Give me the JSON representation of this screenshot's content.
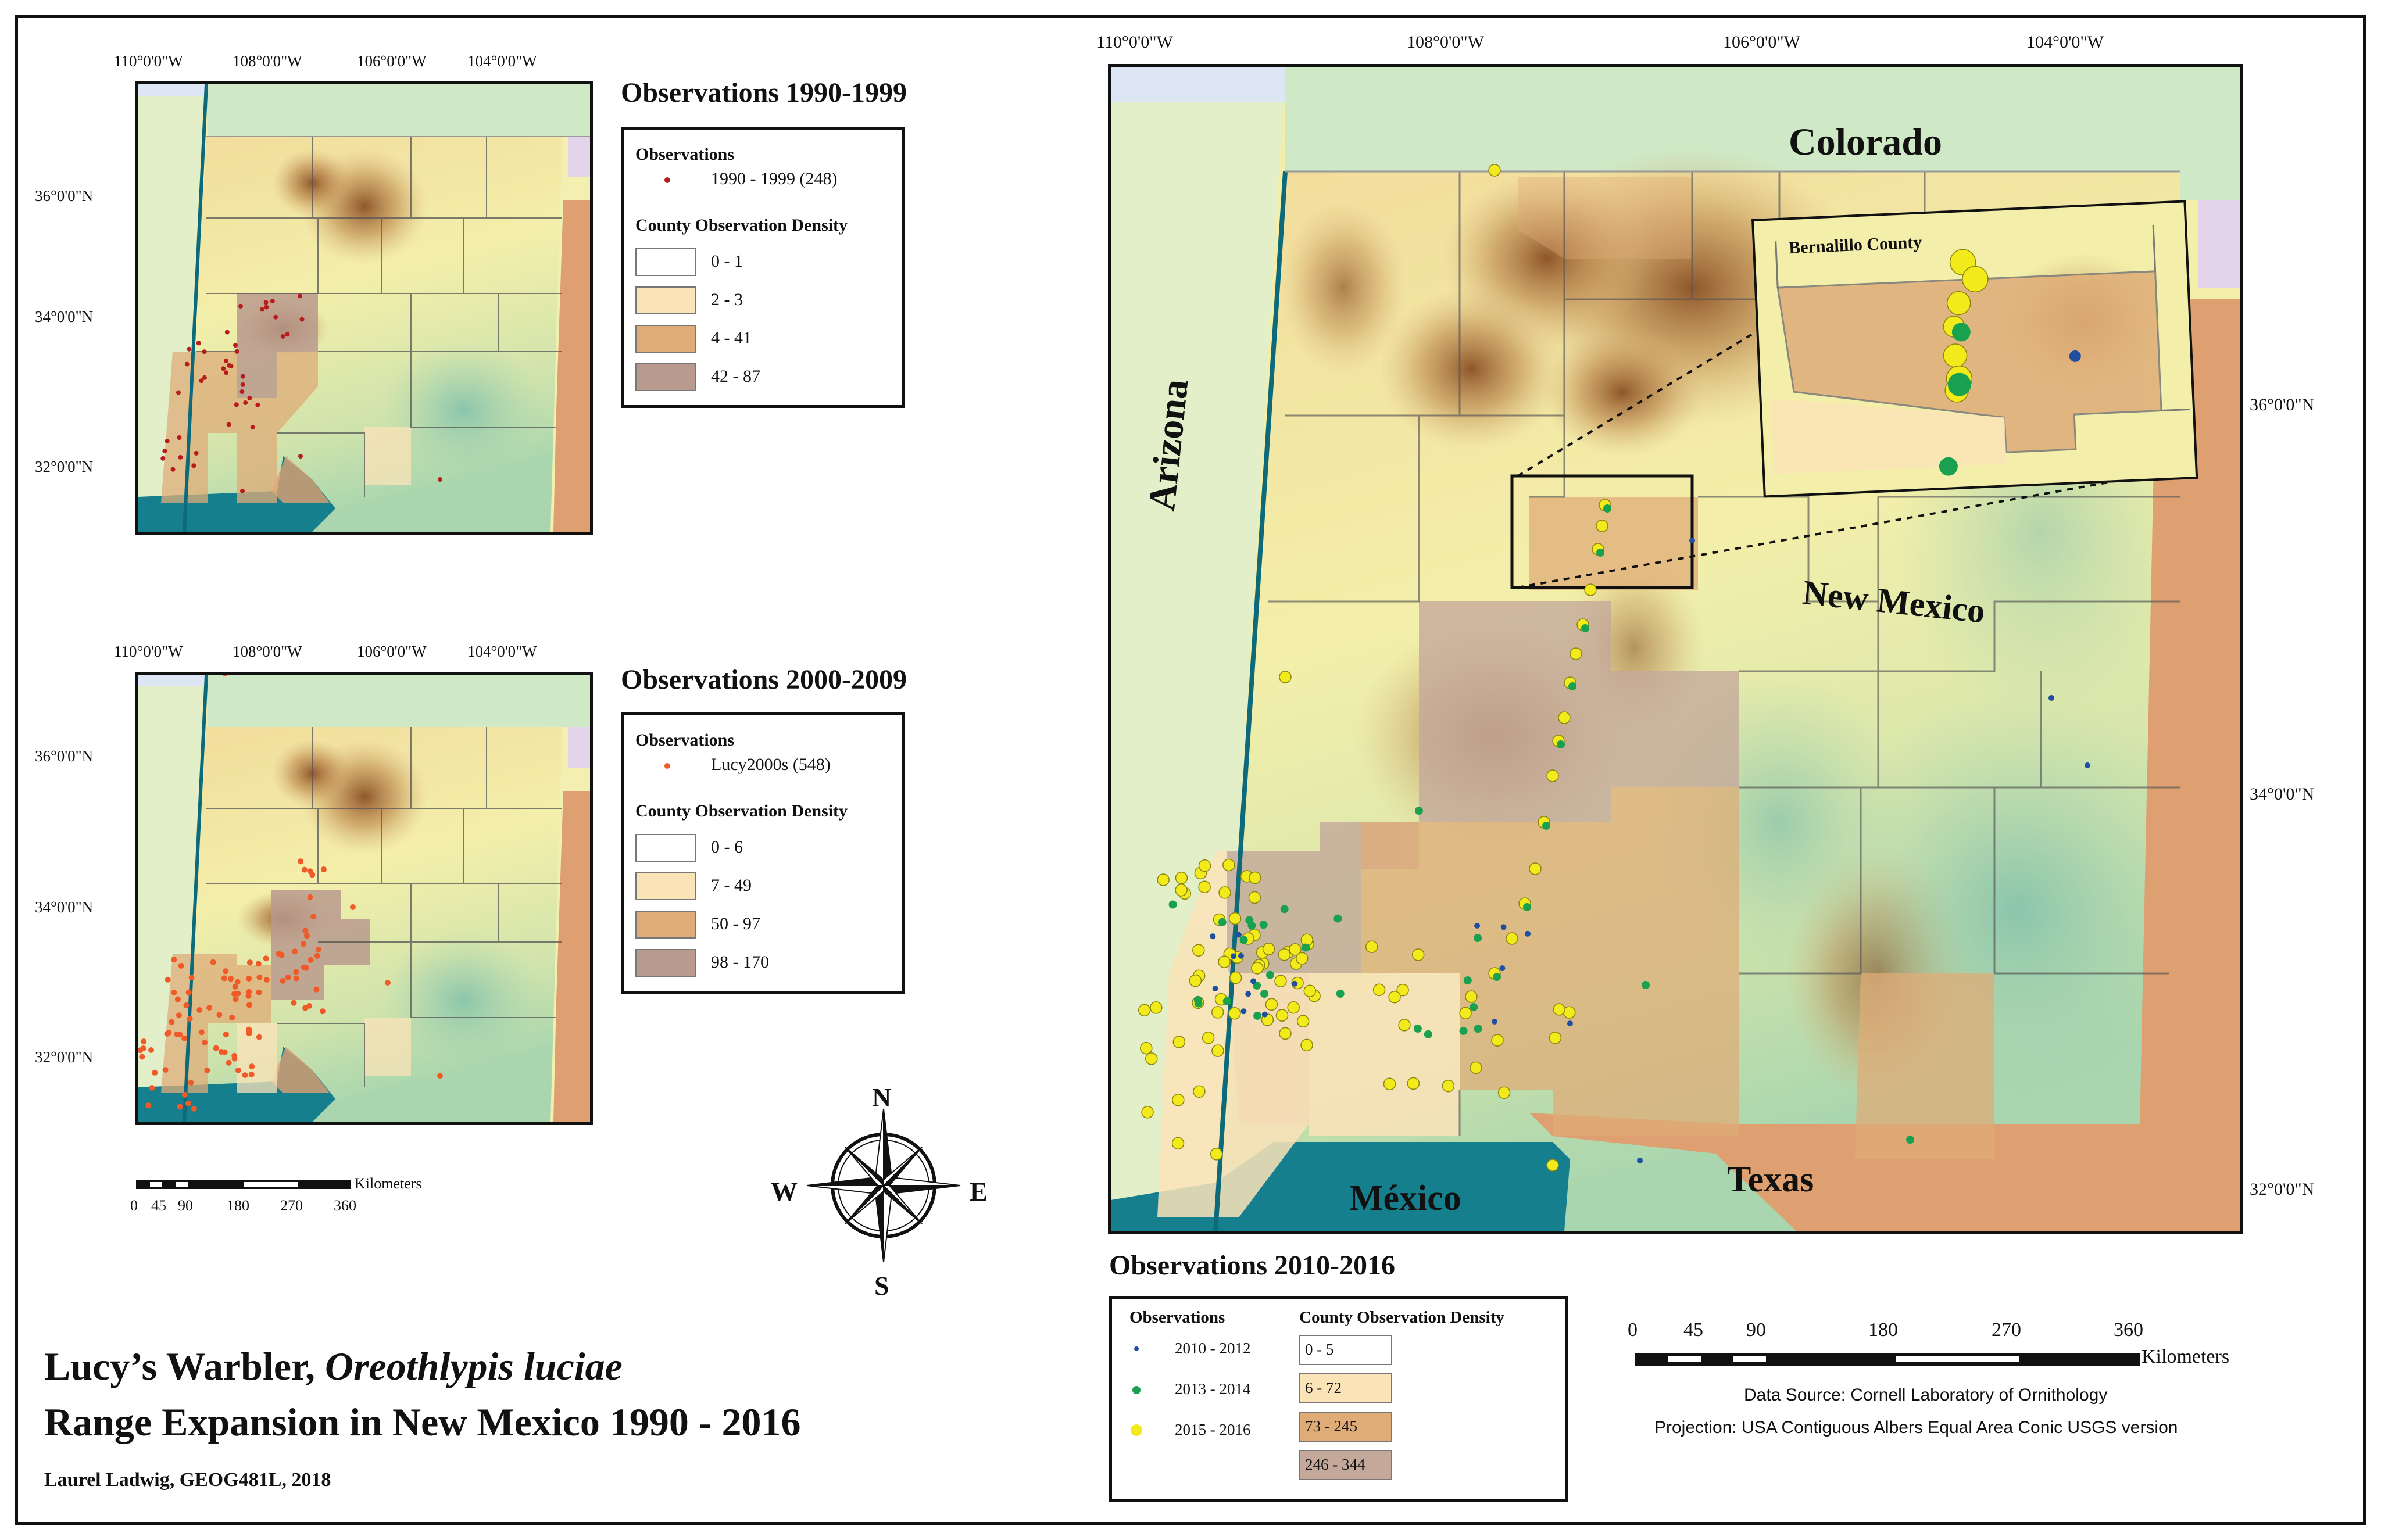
{
  "title": {
    "line1_prefix": "Lucy’s Warbler, ",
    "line1_species": "Oreothlypis luciae",
    "line2": "Range Expansion in New Mexico 1990 - 2016",
    "author": "Laurel Ladwig, GEOG481L, 2018"
  },
  "maps": {
    "m1990": {
      "heading": "Observations 1990-1999",
      "lon_ticks": [
        "110°0'0\"W",
        "108°0'0\"W",
        "106°0'0\"W",
        "104°0'0\"W"
      ],
      "lat_ticks": [
        "36°0'0\"N",
        "34°0'0\"N",
        "32°0'0\"N"
      ],
      "legend": {
        "obs_heading": "Observations",
        "obs_entry": "1990 - 1999 (248)",
        "obs_color": "#b81d1d",
        "density_heading": "County Observation Density",
        "classes": [
          {
            "label": "0 - 1",
            "color": "#ffffff"
          },
          {
            "label": "2 - 3",
            "color": "#fbe3b8"
          },
          {
            "label": "4 - 41",
            "color": "#dfac78"
          },
          {
            "label": "42 - 87",
            "color": "#b89a8e"
          }
        ]
      }
    },
    "m2000": {
      "heading": "Observations 2000-2009",
      "lon_ticks": [
        "110°0'0\"W",
        "108°0'0\"W",
        "106°0'0\"W",
        "104°0'0\"W"
      ],
      "lat_ticks": [
        "36°0'0\"N",
        "34°0'0\"N",
        "32°0'0\"N"
      ],
      "legend": {
        "obs_heading": "Observations",
        "obs_entry": "Lucy2000s (548)",
        "obs_color": "#f05a28",
        "density_heading": "County Observation Density",
        "classes": [
          {
            "label": "0 - 6",
            "color": "#ffffff"
          },
          {
            "label": "7 - 49",
            "color": "#fbe3b8"
          },
          {
            "label": "50 - 97",
            "color": "#dfac78"
          },
          {
            "label": "98 - 170",
            "color": "#b89a8e"
          }
        ]
      }
    },
    "m2010": {
      "heading": "Observations 2010-2016",
      "lon_ticks": [
        "110°0'0\"W",
        "108°0'0\"W",
        "106°0'0\"W",
        "104°0'0\"W"
      ],
      "lat_ticks": [
        "36°0'0\"N",
        "34°0'0\"N",
        "32°0'0\"N"
      ],
      "labels": {
        "colorado": "Colorado",
        "arizona": "Arizona",
        "new_mexico": "New Mexico",
        "mexico": "México",
        "texas": "Texas",
        "inset": "Bernalillo County"
      },
      "legend": {
        "obs_heading": "Observations",
        "obs_entries": [
          {
            "label": "2010 - 2012",
            "color": "#1f4fa0"
          },
          {
            "label": "2013 - 2014",
            "color": "#1aa150"
          },
          {
            "label": "2015 - 2016",
            "color": "#f2ea1a"
          }
        ],
        "density_heading": "County Observation Density",
        "classes": [
          {
            "label": "0 - 5",
            "color": "#ffffff"
          },
          {
            "label": "6 - 72",
            "color": "#fbe3b8"
          },
          {
            "label": "73 - 245",
            "color": "#dfac78"
          },
          {
            "label": "246 - 344",
            "color": "#c4a99b"
          }
        ]
      }
    }
  },
  "compass": {
    "n": "N",
    "s": "S",
    "e": "E",
    "w": "W"
  },
  "scalebar_small": {
    "ticks": [
      "0",
      "45",
      "90",
      "180",
      "270",
      "360"
    ],
    "unit": "Kilometers"
  },
  "scalebar_large": {
    "ticks": [
      "0",
      "45",
      "90",
      "180",
      "270",
      "360"
    ],
    "unit": "Kilometers"
  },
  "source": {
    "data": "Data Source: Cornell Laboratory of Ornithology",
    "projection": "Projection: USA Contiguous Albers Equal Area Conic USGS version"
  },
  "colors": {
    "terrain_low": "#6fb8a4",
    "terrain_mid": "#f3efaa",
    "terrain_high": "#9a5d2c",
    "colorado": "#cfe8c5",
    "arizona": "#e2efc9",
    "texas": "#dea070",
    "mexico": "#167f8e",
    "oklahoma": "#e4d4ea",
    "utah": "#dde6f4"
  }
}
